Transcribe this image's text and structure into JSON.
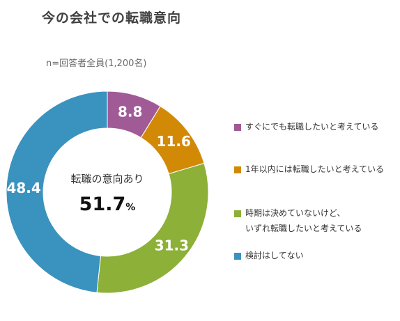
{
  "title": "今の会社での転職意向",
  "subtitle": "n=回答者全員(1,200名)",
  "center_label": "転職の意向あり",
  "center_value": "51.7",
  "center_unit": "%",
  "chart_data": {
    "type": "pie",
    "donut": true,
    "categories": [
      "すぐにでも転職したいと考えている",
      "1年以内には転職したいと考えている",
      "時期は決めていないけど、\nいずれ転職したいと考えている",
      "検討はしてない"
    ],
    "values": [
      8.8,
      11.6,
      31.3,
      48.4
    ],
    "data_labels": [
      "8.8",
      "11.6",
      "31.3",
      "48.4"
    ],
    "colors": [
      "#a05b97",
      "#d28a06",
      "#8cb038",
      "#3a92bf"
    ],
    "legend_position": "right"
  }
}
